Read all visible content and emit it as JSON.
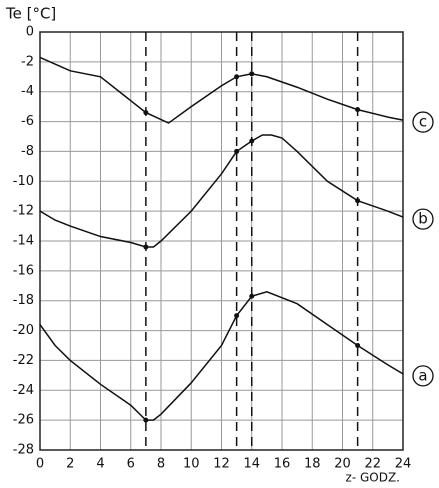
{
  "chart_data": {
    "type": "line",
    "y_label": "Te [°C]",
    "x_label": "z- GODZ.",
    "xlim": [
      0,
      24
    ],
    "xticks": [
      0,
      2,
      4,
      6,
      8,
      10,
      12,
      14,
      16,
      18,
      20,
      22,
      24
    ],
    "ylim": [
      -28,
      0
    ],
    "yticks": [
      -28,
      -26,
      -24,
      -22,
      -20,
      -18,
      -16,
      -14,
      -12,
      -10,
      -8,
      -6,
      -4,
      -2,
      0
    ],
    "grid": true,
    "reference_lines": [
      7,
      13,
      14,
      21
    ],
    "series": [
      {
        "name": "c",
        "color": "#111",
        "x": [
          0,
          2,
          4,
          6,
          7,
          8.5,
          10,
          12,
          13,
          14,
          15,
          17,
          19,
          21,
          23,
          24
        ],
        "values": [
          -1.7,
          -2.6,
          -3.0,
          -4.6,
          -5.4,
          -6.1,
          -5.0,
          -3.6,
          -3.0,
          -2.8,
          -3.0,
          -3.7,
          -4.5,
          -5.2,
          -5.7,
          -5.9
        ]
      },
      {
        "name": "b",
        "color": "#111",
        "x": [
          0,
          1,
          2,
          4,
          6,
          7,
          7.5,
          8,
          10,
          12,
          13,
          14,
          14.7,
          15.3,
          16,
          17,
          19,
          21,
          23,
          24
        ],
        "values": [
          -12,
          -12.6,
          -13,
          -13.7,
          -14.1,
          -14.4,
          -14.4,
          -14,
          -12,
          -9.5,
          -8,
          -7.3,
          -6.9,
          -6.9,
          -7.1,
          -8,
          -10,
          -11.3,
          -12,
          -12.4
        ]
      },
      {
        "name": "a",
        "color": "#111",
        "x": [
          0,
          1,
          2,
          4,
          6,
          7,
          7.5,
          8,
          10,
          12,
          13,
          14,
          15,
          17,
          19,
          21,
          23,
          24
        ],
        "values": [
          -19.6,
          -21,
          -22,
          -23.6,
          -25,
          -26,
          -26,
          -25.6,
          -23.5,
          -21,
          -19,
          -17.7,
          -17.4,
          -18.2,
          -19.6,
          -21,
          -22.3,
          -22.9
        ]
      }
    ]
  }
}
